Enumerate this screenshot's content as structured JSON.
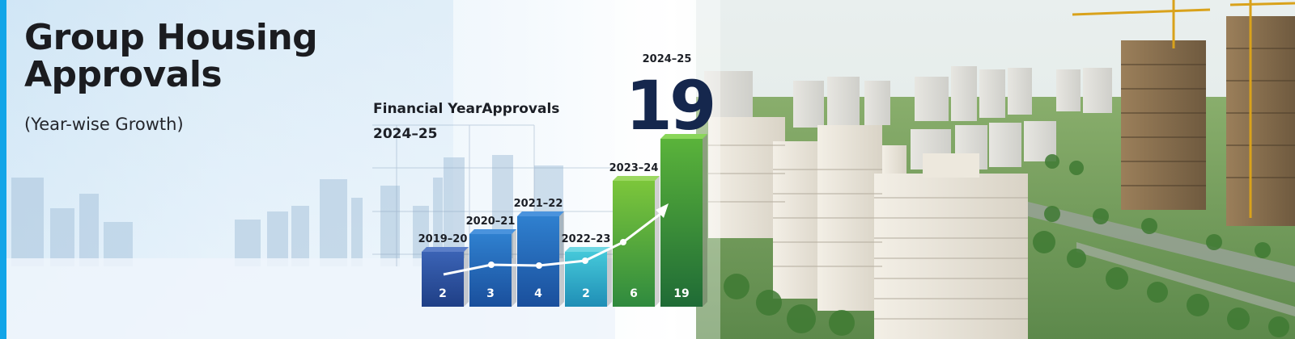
{
  "banner": {
    "title": "Group Housing Approvals",
    "subtitle": "(Year-wise Growth)",
    "highlight_year": "2024–25",
    "highlight_value": "19",
    "chart_heading": "Financial YearApprovals",
    "chart_heading_year": "2024–25"
  },
  "colors": {
    "accent_stripe": "#12a5e8",
    "title": "#1b1c20",
    "bar_blue_dark": "#2e4f9e",
    "bar_blue_mid": "#2a6fc0",
    "bar_teal": "#35b8cf",
    "bar_green": "#6ab833",
    "bar_green_dark": "#2f8a3e",
    "big_number": "#15274d"
  },
  "chart_data": {
    "type": "bar",
    "title": "Financial YearApprovals",
    "categories": [
      "2019–20",
      "2020–21",
      "2021–22",
      "2022–23",
      "2023–24",
      "2024–25"
    ],
    "values": [
      2,
      3,
      4,
      2,
      6,
      19
    ],
    "trend_line": true,
    "grid": true,
    "ylim": [
      0,
      19
    ]
  }
}
